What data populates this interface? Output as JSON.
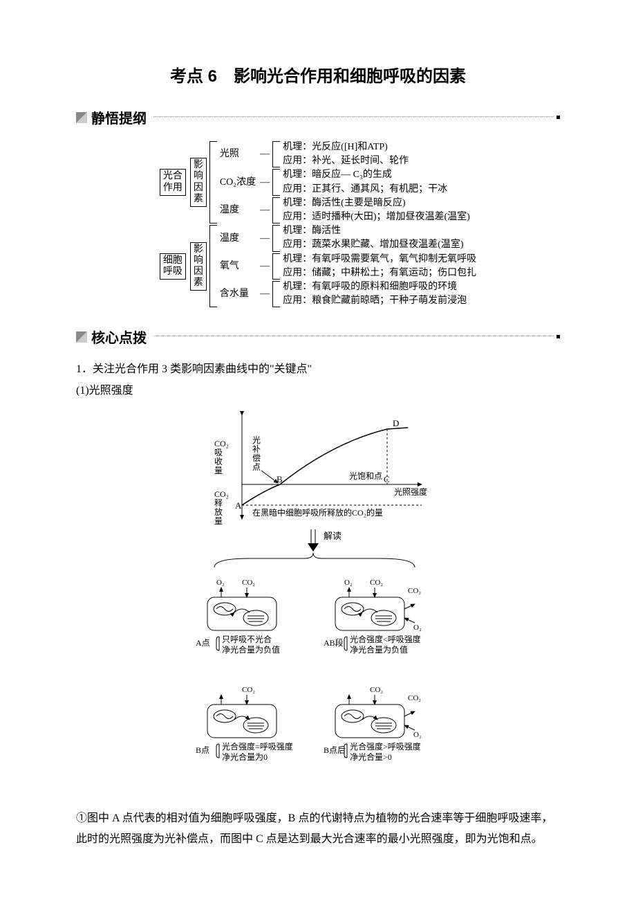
{
  "title_prefix": "考点 6",
  "title_suffix": "影响光合作用和细胞呼吸的因素",
  "section1": "静悟提纲",
  "section2": "核心点拨",
  "map": {
    "block1": {
      "line1": "光合",
      "line2": "作用"
    },
    "block2": {
      "line1": "细胞",
      "line2": "呼吸"
    },
    "mid": {
      "line1": "影",
      "line2": "响",
      "line3": "因",
      "line4": "素"
    },
    "r1": {
      "label": "光照",
      "m": "机理：光反应([H]和ATP)",
      "a": "应用：补光、延长时间、轮作"
    },
    "r2": {
      "label": "CO₂浓度",
      "m": "机理：暗反应— C₃的生成",
      "a": "应用：正其行、通其风；有机肥；干冰"
    },
    "r3": {
      "label": "温度",
      "m": "机理：酶活性(主要是暗反应)",
      "a": "应用：适时播种(大田)；增加昼夜温差(温室)"
    },
    "r4": {
      "label": "温度",
      "m": "机理：酶活性",
      "a": "应用：蔬菜水果贮藏、增加昼夜温差(温室)"
    },
    "r5": {
      "label": "氧气",
      "m": "机理：有氧呼吸需要氧气，氧气抑制无氧呼吸",
      "a": "应用：储藏；中耕松土；有氧运动；伤口包扎"
    },
    "r6": {
      "label": "含水量",
      "m": "机理：有氧呼吸的原料和细胞呼吸的环境",
      "a": "应用：粮食贮藏前晾晒；干种子萌发前浸泡"
    }
  },
  "p1": "1．关注光合作用 3 类影响因素曲线中的\"关键点\"",
  "p2": "(1)光照强度",
  "chart": {
    "y_up": "CO₂\n吸\n收\n量",
    "y_dn": "CO₂\n释\n放\n量",
    "comp": "光\n补\n偿\n点",
    "sat": "光饱和点",
    "xaxis": "光照强度",
    "dark": "在黑暗中细胞呼吸所释放的CO₂的量",
    "A": "A",
    "B": "B",
    "C": "C",
    "D": "D",
    "jiedu": "解读",
    "o2": "O₂",
    "co2": "CO₂",
    "capA": {
      "t": "A点",
      "l1": "只呼吸不光合",
      "l2": "净光合量为负值"
    },
    "capAB": {
      "t": "AB段",
      "l1": "光合强度<呼吸强度",
      "l2": "净光合量为负值"
    },
    "capB": {
      "t": "B点",
      "l1": "光合强度=呼吸强度",
      "l2": "净光合量为0"
    },
    "capBp": {
      "t": "B点后",
      "l1": "光合强度>呼吸强度",
      "l2": "净光合量>0"
    }
  },
  "p3": "①图中 A 点代表的相对值为细胞呼吸强度，B 点的代谢特点为植物的光合速率等于细胞呼吸速率，此时的光照强度为光补偿点，而图中 C 点是达到最大光合速率的最小光照强度，即为光饱和点。"
}
